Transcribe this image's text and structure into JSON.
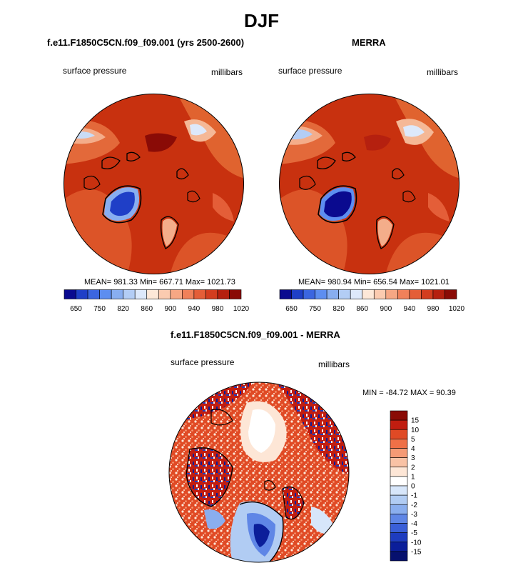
{
  "figure_title": "DJF",
  "top_left": {
    "title": "f.e11.F1850C5CN.f09_f09.001 (yrs 2500-2600)",
    "variable": "surface pressure",
    "units": "millibars",
    "stats": "MEAN= 981.33  Min= 667.71  Max= 1021.73"
  },
  "top_right": {
    "title": "MERRA",
    "variable": "surface pressure",
    "units": "millibars",
    "stats": "MEAN= 980.94  Min= 656.54  Max= 1021.01"
  },
  "abs_colorbar": {
    "colors": [
      "#0a0a8f",
      "#1f3fc7",
      "#3b66e0",
      "#5d8ef0",
      "#88aef0",
      "#b3cdf5",
      "#dde9fb",
      "#fde8d8",
      "#fbcbb0",
      "#f6a784",
      "#f0815a",
      "#e45e38",
      "#d33d1f",
      "#b5200f",
      "#8a0b06"
    ],
    "tick_labels": [
      "650",
      "750",
      "820",
      "860",
      "900",
      "940",
      "980",
      "1020"
    ]
  },
  "diff": {
    "title": "f.e11.F1850C5CN.f09_f09.001 - MERRA",
    "variable": "surface pressure",
    "units": "millibars",
    "stats": "MIN = -84.72 MAX =  90.39",
    "colorbar_colors": [
      "#8a0b06",
      "#c11d10",
      "#e04a25",
      "#ef7047",
      "#f59a75",
      "#f9c2a5",
      "#fde6d6",
      "#ffffff",
      "#d7e6fa",
      "#b1ccf3",
      "#8aaeee",
      "#5f86e6",
      "#3a5fd8",
      "#1e3cbf",
      "#0b1e9a",
      "#06106e"
    ],
    "colorbar_labels": [
      "15",
      "10",
      "5",
      "4",
      "3",
      "2",
      "1",
      "0",
      "-1",
      "-2",
      "-3",
      "-4",
      "-5",
      "-10",
      "-15"
    ]
  }
}
